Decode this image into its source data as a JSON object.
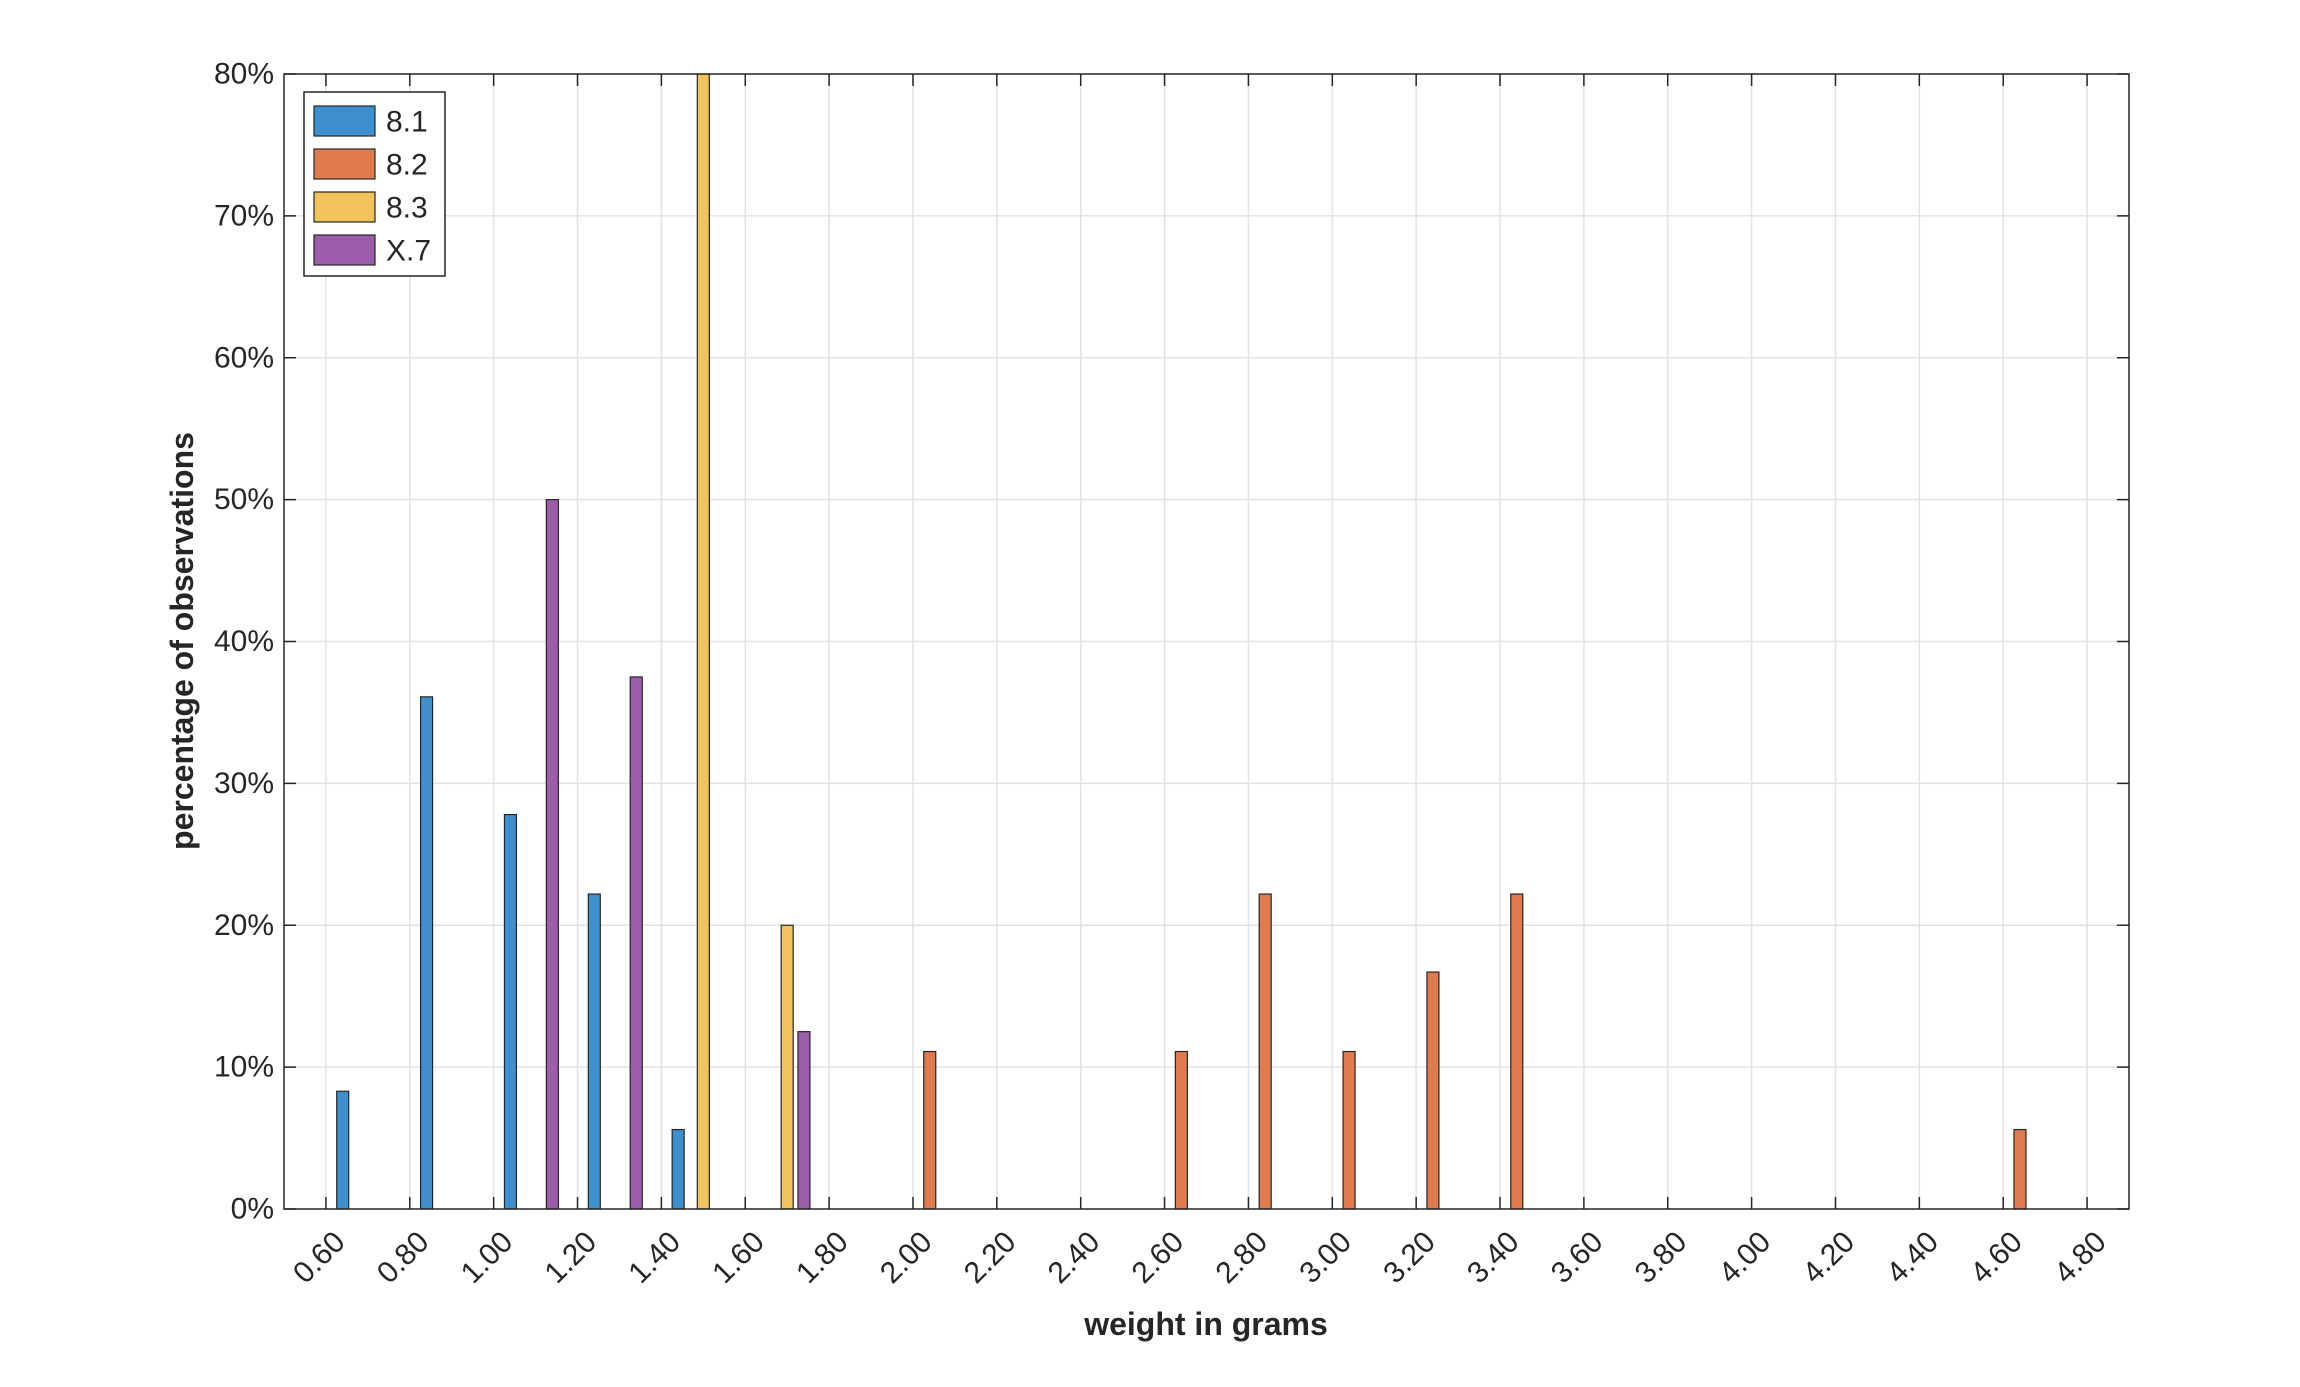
{
  "chart_data": {
    "type": "bar",
    "title": "",
    "xlabel": "weight in grams",
    "ylabel": "percentage of observations",
    "xlim": [
      0.5,
      4.9
    ],
    "ylim": [
      0,
      80
    ],
    "x_ticks": [
      "0.60",
      "0.80",
      "1.00",
      "1.20",
      "1.40",
      "1.60",
      "1.80",
      "2.00",
      "2.20",
      "2.40",
      "2.60",
      "2.80",
      "3.00",
      "3.20",
      "3.40",
      "3.60",
      "3.80",
      "4.00",
      "4.20",
      "4.40",
      "4.60",
      "4.80"
    ],
    "y_ticks": [
      "0%",
      "10%",
      "20%",
      "30%",
      "40%",
      "50%",
      "60%",
      "70%",
      "80%"
    ],
    "grid": true,
    "legend_position": "top-left",
    "series": [
      {
        "name": "8.1",
        "color": "#3d8fcd",
        "points": [
          [
            0.64,
            8.3
          ],
          [
            0.84,
            36.1
          ],
          [
            1.04,
            27.8
          ],
          [
            1.24,
            22.2
          ],
          [
            1.44,
            5.6
          ]
        ]
      },
      {
        "name": "8.2",
        "color": "#e07b4e",
        "points": [
          [
            2.04,
            11.1
          ],
          [
            2.64,
            11.1
          ],
          [
            2.84,
            22.2
          ],
          [
            3.04,
            11.1
          ],
          [
            3.24,
            16.7
          ],
          [
            3.44,
            22.2
          ],
          [
            4.64,
            5.6
          ]
        ]
      },
      {
        "name": "8.3",
        "color": "#f1c35a",
        "points": [
          [
            1.5,
            80.0
          ],
          [
            1.7,
            20.0
          ]
        ]
      },
      {
        "name": "X.7",
        "color": "#9c5dab",
        "points": [
          [
            1.14,
            50.0
          ],
          [
            1.34,
            37.5
          ],
          [
            1.74,
            12.5
          ]
        ]
      }
    ]
  }
}
